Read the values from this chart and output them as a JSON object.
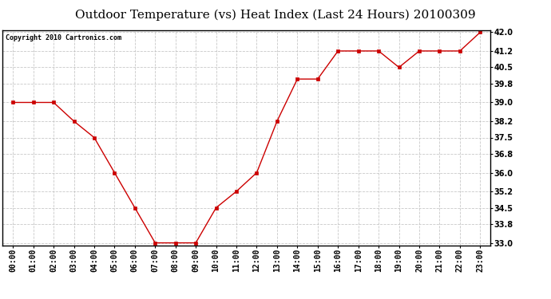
{
  "title": "Outdoor Temperature (vs) Heat Index (Last 24 Hours) 20100309",
  "copyright": "Copyright 2010 Cartronics.com",
  "x_labels": [
    "00:00",
    "01:00",
    "02:00",
    "03:00",
    "04:00",
    "05:00",
    "06:00",
    "07:00",
    "08:00",
    "09:00",
    "10:00",
    "11:00",
    "12:00",
    "13:00",
    "14:00",
    "15:00",
    "16:00",
    "17:00",
    "18:00",
    "19:00",
    "20:00",
    "21:00",
    "22:00",
    "23:00"
  ],
  "y_values": [
    39.0,
    39.0,
    39.0,
    38.2,
    37.5,
    36.0,
    34.5,
    33.0,
    33.0,
    33.0,
    34.5,
    35.2,
    36.0,
    38.2,
    40.0,
    40.0,
    41.2,
    41.2,
    41.2,
    40.5,
    41.2,
    41.2,
    41.2,
    42.0
  ],
  "y_min": 33.0,
  "y_max": 42.0,
  "y_ticks": [
    33.0,
    33.8,
    34.5,
    35.2,
    36.0,
    36.8,
    37.5,
    38.2,
    39.0,
    39.8,
    40.5,
    41.2,
    42.0
  ],
  "line_color": "#cc0000",
  "marker": "s",
  "marker_size": 2.5,
  "grid_color": "#bbbbbb",
  "background_color": "#ffffff",
  "title_fontsize": 11,
  "copyright_fontsize": 6,
  "tick_fontsize": 7,
  "ylabel_fontsize": 7
}
